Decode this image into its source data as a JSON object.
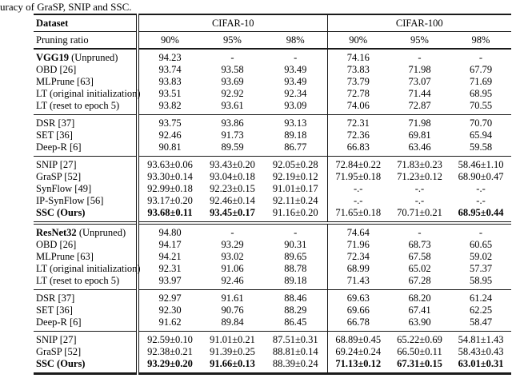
{
  "caption": "uracy of GraSP, SNIP and SSC.",
  "table": {
    "header": {
      "dataset": "Dataset",
      "pruning_ratio": "Pruning ratio",
      "groups": [
        {
          "label": "CIFAR-10",
          "ratios": [
            "90%",
            "95%",
            "98%"
          ]
        },
        {
          "label": "CIFAR-100",
          "ratios": [
            "90%",
            "95%",
            "98%"
          ]
        }
      ]
    },
    "parts": [
      {
        "blocks": [
          {
            "rows": [
              {
                "label_bold": "VGG19",
                "label": " (Unpruned)",
                "values": [
                  "94.23",
                  "-",
                  "-",
                  "74.16",
                  "-",
                  "-"
                ]
              },
              {
                "label": "OBD [26]",
                "values": [
                  "93.74",
                  "93.58",
                  "93.49",
                  "73.83",
                  "71.98",
                  "67.79"
                ]
              },
              {
                "label": "MLPrune [63]",
                "values": [
                  "93.83",
                  "93.69",
                  "93.49",
                  "73.79",
                  "73.07",
                  "71.69"
                ]
              },
              {
                "label": "LT (original initialization)",
                "values": [
                  "93.51",
                  "92.92",
                  "92.34",
                  "72.78",
                  "71.44",
                  "68.95"
                ]
              },
              {
                "label": "LT (reset to epoch 5)",
                "values": [
                  "93.82",
                  "93.61",
                  "93.09",
                  "74.06",
                  "72.87",
                  "70.55"
                ]
              }
            ]
          },
          {
            "rows": [
              {
                "label": "DSR [37]",
                "values": [
                  "93.75",
                  "93.86",
                  "93.13",
                  "72.31",
                  "71.98",
                  "70.70"
                ]
              },
              {
                "label": "SET [36]",
                "values": [
                  "92.46",
                  "91.73",
                  "89.18",
                  "72.36",
                  "69.81",
                  "65.94"
                ]
              },
              {
                "label": "Deep-R [6]",
                "values": [
                  "90.81",
                  "89.59",
                  "86.77",
                  "66.83",
                  "63.46",
                  "59.58"
                ]
              }
            ]
          },
          {
            "rows": [
              {
                "label": "SNIP [27]",
                "values": [
                  "93.63±0.06",
                  "93.43±0.20",
                  "92.05±0.28",
                  "72.84±0.22",
                  "71.83±0.23",
                  "58.46±1.10"
                ]
              },
              {
                "label": "GraSP [52]",
                "values": [
                  "93.30±0.14",
                  "93.04±0.18",
                  "92.19±0.12",
                  "71.95±0.18",
                  "71.23±0.12",
                  "68.90±0.47"
                ]
              },
              {
                "label": "SynFlow [49]",
                "values": [
                  "92.99±0.18",
                  "92.23±0.15",
                  "91.01±0.17",
                  "-.-",
                  "-.-",
                  "-.-"
                ]
              },
              {
                "label": "IP-SynFlow [56]",
                "values": [
                  "93.17±0.20",
                  "92.46±0.14",
                  "92.11±0.24",
                  "-.-",
                  "-.-",
                  "-.-"
                ]
              },
              {
                "label_bold": "SSC (Ours)",
                "label": "",
                "values": [
                  "93.68±0.11",
                  "93.45±0.17",
                  "91.16±0.20",
                  "71.65±0.18",
                  "70.71±0.21",
                  "68.95±0.44"
                ],
                "bold": [
                  1,
                  1,
                  0,
                  0,
                  0,
                  1
                ]
              }
            ]
          }
        ]
      },
      {
        "blocks": [
          {
            "rows": [
              {
                "label_bold": "ResNet32",
                "label": " (Unpruned)",
                "values": [
                  "94.80",
                  "-",
                  "-",
                  "74.64",
                  "-",
                  "-"
                ]
              },
              {
                "label": "OBD [26]",
                "values": [
                  "94.17",
                  "93.29",
                  "90.31",
                  "71.96",
                  "68.73",
                  "60.65"
                ]
              },
              {
                "label": "MLPrune [63]",
                "values": [
                  "94.21",
                  "93.02",
                  "89.65",
                  "72.34",
                  "67.58",
                  "59.02"
                ]
              },
              {
                "label": "LT (original initialization)",
                "values": [
                  "92.31",
                  "91.06",
                  "88.78",
                  "68.99",
                  "65.02",
                  "57.37"
                ]
              },
              {
                "label": "LT (reset to epoch 5)",
                "values": [
                  "93.97",
                  "92.46",
                  "89.18",
                  "71.43",
                  "67.28",
                  "58.95"
                ]
              }
            ]
          },
          {
            "rows": [
              {
                "label": "DSR [37]",
                "values": [
                  "92.97",
                  "91.61",
                  "88.46",
                  "69.63",
                  "68.20",
                  "61.24"
                ]
              },
              {
                "label": "SET [36]",
                "values": [
                  "92.30",
                  "90.76",
                  "88.29",
                  "69.66",
                  "67.41",
                  "62.25"
                ]
              },
              {
                "label": "Deep-R [6]",
                "values": [
                  "91.62",
                  "89.84",
                  "86.45",
                  "66.78",
                  "63.90",
                  "58.47"
                ]
              }
            ]
          },
          {
            "rows": [
              {
                "label": "SNIP [27]",
                "values": [
                  "92.59±0.10",
                  "91.01±0.21",
                  "87.51±0.31",
                  "68.89±0.45",
                  "65.22±0.69",
                  "54.81±1.43"
                ]
              },
              {
                "label": "GraSP [52]",
                "values": [
                  "92.38±0.21",
                  "91.39±0.25",
                  "88.81±0.14",
                  "69.24±0.24",
                  "66.50±0.11",
                  "58.43±0.43"
                ]
              },
              {
                "label_bold": "SSC (Ours)",
                "label": "",
                "values": [
                  "93.29±0.20",
                  "91.66±0.13",
                  "88.39±0.24",
                  "71.13±0.12",
                  "67.31±0.15",
                  "63.01±0.31"
                ],
                "bold": [
                  1,
                  1,
                  0,
                  1,
                  1,
                  1
                ]
              }
            ]
          }
        ]
      }
    ]
  }
}
